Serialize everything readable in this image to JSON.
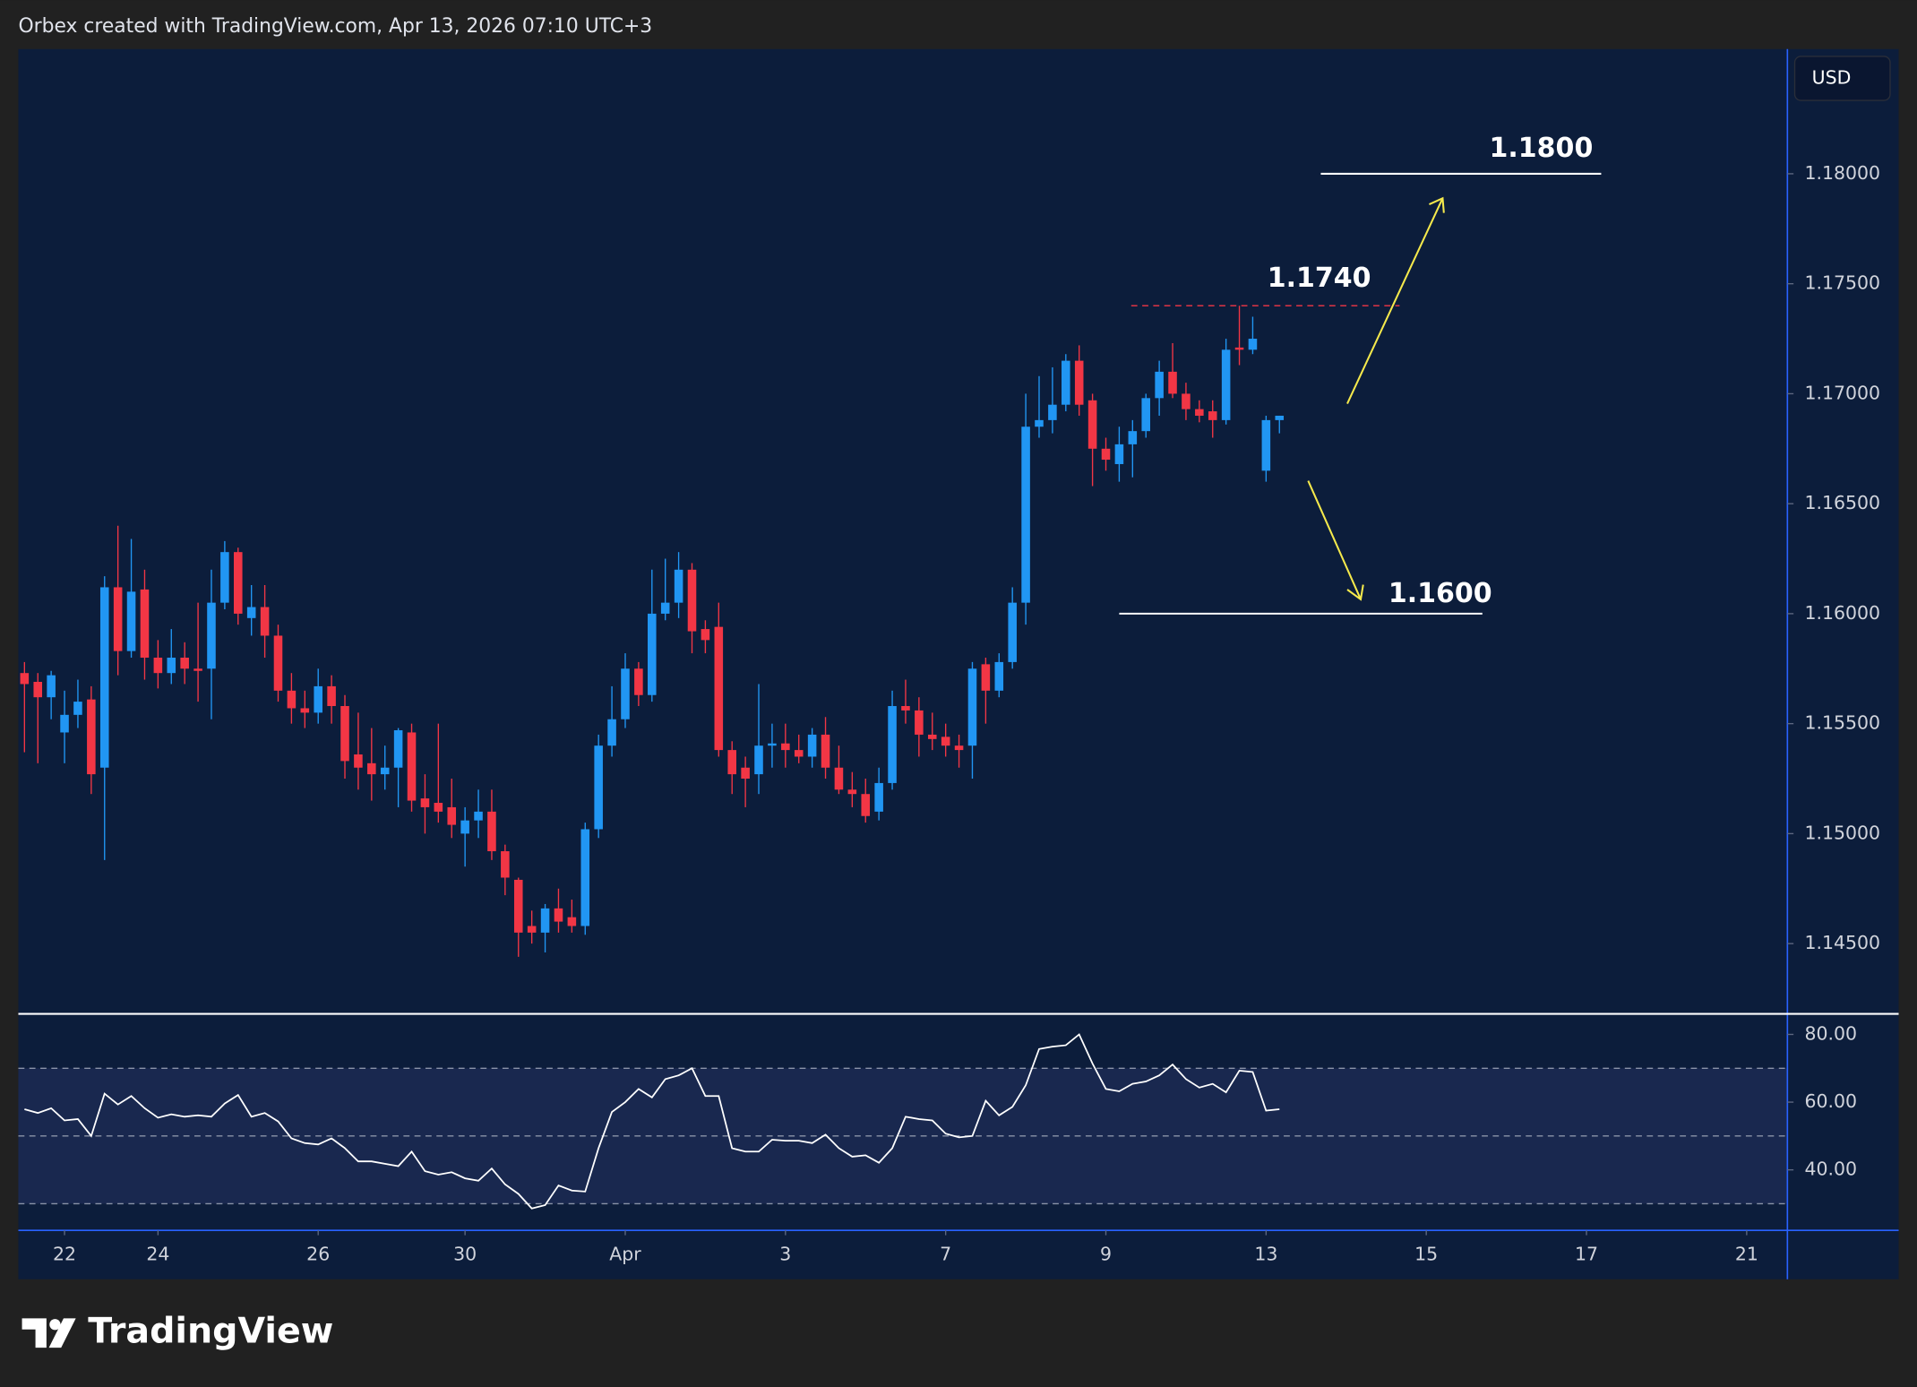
{
  "header": {
    "title": "Orbex created with TradingView.com, Apr 13, 2026 07:10 UTC+3",
    "currency": "USD"
  },
  "footer": {
    "brand": "TradingView"
  },
  "chart_data": [
    {
      "type": "candlestick",
      "up_color": "#2196f3",
      "down_color": "#f23645",
      "open": [
        1.1573,
        1.1569,
        1.1562,
        1.1546,
        1.1554,
        1.1561,
        1.153,
        1.1612,
        1.1583,
        1.1611,
        1.158,
        1.1573,
        1.158,
        1.1575,
        1.1575,
        1.1605,
        1.1628,
        1.1598,
        1.1603,
        1.159,
        1.1565,
        1.1557,
        1.1555,
        1.1567,
        1.1558,
        1.1536,
        1.1532,
        1.1527,
        1.153,
        1.1546,
        1.1516,
        1.1514,
        1.1512,
        1.15,
        1.1506,
        1.151,
        1.1492,
        1.1479,
        1.1458,
        1.1455,
        1.1466,
        1.1462,
        1.1458,
        1.1502,
        1.154,
        1.1552,
        1.1575,
        1.1563,
        1.16,
        1.1605,
        1.162,
        1.1593,
        1.1594,
        1.1538,
        1.153,
        1.1527,
        1.154,
        1.1541,
        1.1538,
        1.1535,
        1.1545,
        1.153,
        1.152,
        1.1518,
        1.151,
        1.1523,
        1.1558,
        1.1556,
        1.1545,
        1.1544,
        1.154,
        1.154,
        1.1577,
        1.1565,
        1.1578,
        1.1605,
        1.1685,
        1.1688,
        1.1695,
        1.1715,
        1.1697,
        1.1675,
        1.1668,
        1.1677,
        1.1683,
        1.1698,
        1.171,
        1.17,
        1.1693,
        1.1692,
        1.1688,
        1.1721,
        1.172,
        1.1665,
        1.1688
      ],
      "high": [
        1.1578,
        1.1573,
        1.1574,
        1.1565,
        1.157,
        1.1567,
        1.1617,
        1.164,
        1.1634,
        1.162,
        1.1588,
        1.1593,
        1.1587,
        1.1605,
        1.162,
        1.1633,
        1.163,
        1.1613,
        1.1613,
        1.1595,
        1.1573,
        1.1565,
        1.1575,
        1.1572,
        1.1563,
        1.1555,
        1.1548,
        1.154,
        1.1548,
        1.155,
        1.1527,
        1.155,
        1.1525,
        1.1512,
        1.152,
        1.152,
        1.1495,
        1.148,
        1.1465,
        1.1468,
        1.1475,
        1.147,
        1.1505,
        1.1545,
        1.1567,
        1.1582,
        1.1578,
        1.162,
        1.1625,
        1.1628,
        1.1623,
        1.1597,
        1.1605,
        1.1542,
        1.1535,
        1.1568,
        1.155,
        1.155,
        1.1545,
        1.1548,
        1.1553,
        1.154,
        1.1528,
        1.1525,
        1.153,
        1.1565,
        1.157,
        1.1562,
        1.1555,
        1.155,
        1.1545,
        1.1578,
        1.158,
        1.1582,
        1.1612,
        1.17,
        1.1708,
        1.1712,
        1.1718,
        1.1722,
        1.17,
        1.168,
        1.1685,
        1.1688,
        1.17,
        1.1715,
        1.1723,
        1.1705,
        1.1697,
        1.1697,
        1.1725,
        1.174,
        1.1735,
        1.169,
        1.169
      ],
      "low": [
        1.1537,
        1.1532,
        1.1552,
        1.1532,
        1.1548,
        1.1518,
        1.1488,
        1.1572,
        1.158,
        1.157,
        1.1566,
        1.1568,
        1.1568,
        1.156,
        1.1552,
        1.1602,
        1.1595,
        1.159,
        1.158,
        1.156,
        1.155,
        1.1548,
        1.155,
        1.155,
        1.1525,
        1.152,
        1.1515,
        1.152,
        1.1512,
        1.151,
        1.15,
        1.1505,
        1.1498,
        1.1485,
        1.1498,
        1.1488,
        1.1472,
        1.1444,
        1.145,
        1.1446,
        1.1455,
        1.1455,
        1.1454,
        1.1498,
        1.1535,
        1.1548,
        1.1558,
        1.156,
        1.1597,
        1.1598,
        1.1582,
        1.1582,
        1.1535,
        1.1518,
        1.1512,
        1.1518,
        1.153,
        1.153,
        1.1532,
        1.153,
        1.1525,
        1.1518,
        1.1512,
        1.1505,
        1.1506,
        1.152,
        1.155,
        1.1535,
        1.1538,
        1.1535,
        1.153,
        1.1525,
        1.155,
        1.1562,
        1.1575,
        1.1595,
        1.168,
        1.1682,
        1.1692,
        1.169,
        1.1658,
        1.1665,
        1.166,
        1.1662,
        1.168,
        1.169,
        1.1698,
        1.1688,
        1.1687,
        1.168,
        1.1686,
        1.1713,
        1.1718,
        1.166,
        1.1682
      ],
      "close": [
        1.1568,
        1.1562,
        1.1572,
        1.1554,
        1.156,
        1.1527,
        1.1612,
        1.1583,
        1.161,
        1.158,
        1.1573,
        1.158,
        1.1575,
        1.1574,
        1.1605,
        1.1628,
        1.16,
        1.1603,
        1.159,
        1.1565,
        1.1557,
        1.1555,
        1.1567,
        1.1558,
        1.1533,
        1.153,
        1.1527,
        1.153,
        1.1547,
        1.1515,
        1.1512,
        1.151,
        1.1504,
        1.1506,
        1.151,
        1.1492,
        1.148,
        1.1455,
        1.1455,
        1.1466,
        1.146,
        1.1458,
        1.1502,
        1.154,
        1.1552,
        1.1575,
        1.1563,
        1.16,
        1.1605,
        1.162,
        1.1592,
        1.1588,
        1.1538,
        1.1527,
        1.1525,
        1.154,
        1.1541,
        1.1538,
        1.1535,
        1.1545,
        1.153,
        1.152,
        1.1518,
        1.1508,
        1.1523,
        1.1558,
        1.1556,
        1.1545,
        1.1543,
        1.154,
        1.1538,
        1.1575,
        1.1565,
        1.1578,
        1.1605,
        1.1685,
        1.1688,
        1.1695,
        1.1715,
        1.1695,
        1.1675,
        1.167,
        1.1677,
        1.1683,
        1.1698,
        1.171,
        1.17,
        1.1693,
        1.169,
        1.1688,
        1.172,
        1.172,
        1.1725,
        1.1688,
        1.169
      ],
      "xlim": [
        -0.46,
        132.05
      ],
      "ylim": [
        1.14186,
        1.18567
      ],
      "yticks": [
        {
          "value": 1.145,
          "label": "1.14500"
        },
        {
          "value": 1.15,
          "label": "1.15000"
        },
        {
          "value": 1.155,
          "label": "1.15500"
        },
        {
          "value": 1.16,
          "label": "1.16000"
        },
        {
          "value": 1.165,
          "label": "1.16500"
        },
        {
          "value": 1.17,
          "label": "1.17000"
        },
        {
          "value": 1.175,
          "label": "1.17500"
        },
        {
          "value": 1.18,
          "label": "1.18000"
        }
      ],
      "annotations": [
        {
          "value": 1.18,
          "label": "1.1800",
          "color": "#ffffff",
          "dashed": false
        },
        {
          "value": 1.174,
          "label": "1.1740",
          "color": "#f23645",
          "dashed": true
        },
        {
          "value": 1.16,
          "label": "1.1600",
          "color": "#ffffff",
          "dashed": false
        }
      ]
    },
    {
      "type": "line",
      "color": "#ffffff",
      "band": [
        30,
        70
      ],
      "hlines": [
        70,
        50,
        30
      ],
      "values": [
        57.9,
        56.8,
        58.2,
        54.6,
        55.0,
        50.0,
        62.5,
        59.3,
        61.8,
        58.2,
        55.4,
        56.4,
        55.7,
        56.1,
        55.7,
        59.6,
        62.1,
        55.7,
        56.8,
        54.3,
        49.3,
        47.9,
        47.5,
        49.3,
        46.4,
        42.5,
        42.5,
        41.8,
        41.1,
        45.4,
        39.6,
        38.6,
        39.3,
        37.5,
        36.8,
        40.4,
        35.7,
        32.9,
        28.6,
        29.6,
        35.4,
        33.9,
        33.6,
        46.4,
        57.1,
        60.0,
        63.9,
        61.4,
        66.8,
        67.9,
        70.0,
        61.8,
        61.8,
        46.4,
        45.4,
        45.4,
        48.9,
        48.6,
        48.6,
        47.9,
        50.4,
        46.4,
        43.9,
        44.3,
        42.1,
        46.4,
        55.7,
        55.0,
        54.6,
        50.7,
        49.6,
        50.0,
        60.4,
        56.1,
        58.6,
        65.0,
        75.7,
        76.4,
        76.8,
        80.0,
        71.4,
        63.9,
        63.2,
        65.4,
        66.1,
        67.9,
        71.1,
        66.8,
        64.3,
        65.4,
        62.9,
        69.3,
        68.9,
        57.5,
        57.9
      ],
      "xlim": [
        -0.46,
        132.05
      ],
      "ylim": [
        22.5,
        85.7
      ],
      "yticks": [
        {
          "value": 40,
          "label": "40.00"
        },
        {
          "value": 60,
          "label": "60.00"
        },
        {
          "value": 80,
          "label": "80.00"
        }
      ],
      "xticks": [
        {
          "value": 3,
          "label": "22"
        },
        {
          "value": 10,
          "label": "24"
        },
        {
          "value": 22,
          "label": "26"
        },
        {
          "value": 33,
          "label": "30"
        },
        {
          "value": 45,
          "label": "Apr"
        },
        {
          "value": 57,
          "label": "3"
        },
        {
          "value": 69,
          "label": "7"
        },
        {
          "value": 81,
          "label": "9"
        },
        {
          "value": 93,
          "label": "13"
        },
        {
          "value": 105,
          "label": "15"
        },
        {
          "value": 117,
          "label": "17"
        },
        {
          "value": 129,
          "label": "21"
        }
      ]
    }
  ]
}
